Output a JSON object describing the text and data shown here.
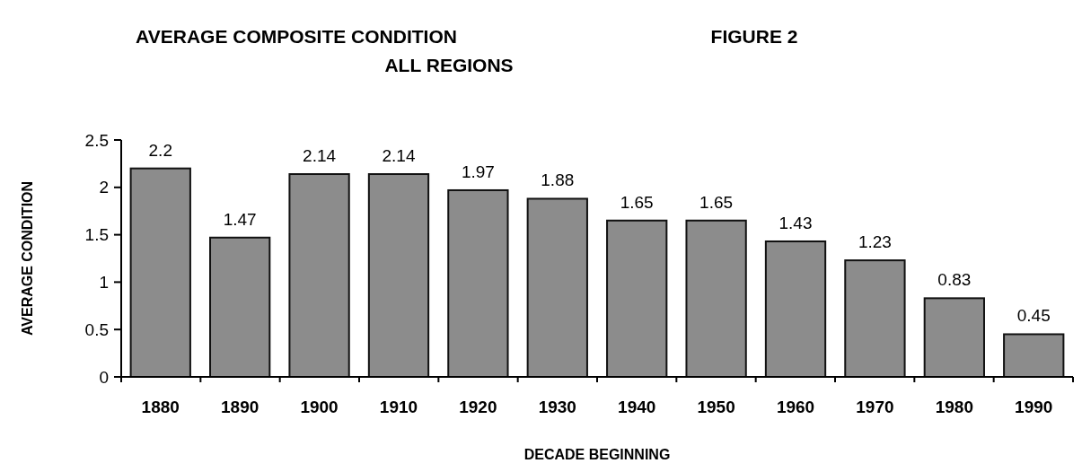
{
  "chart_data": {
    "type": "bar",
    "title": "AVERAGE COMPOSITE CONDITION",
    "subtitle": "ALL REGIONS",
    "annotations": [
      "FIGURE 2"
    ],
    "xlabel": "DECADE BEGINNING",
    "ylabel": "AVERAGE CONDITION",
    "categories": [
      "1880",
      "1890",
      "1900",
      "1910",
      "1920",
      "1930",
      "1940",
      "1950",
      "1960",
      "1970",
      "1980",
      "1990"
    ],
    "values": [
      2.2,
      1.47,
      2.14,
      2.14,
      1.97,
      1.88,
      1.65,
      1.65,
      1.43,
      1.23,
      0.83,
      0.45
    ],
    "color": "#8c8c8c",
    "ylim": [
      0,
      2.5
    ],
    "yticks": [
      0,
      0.5,
      1,
      1.5,
      2,
      2.5
    ],
    "data_labels": true,
    "grid": false
  }
}
